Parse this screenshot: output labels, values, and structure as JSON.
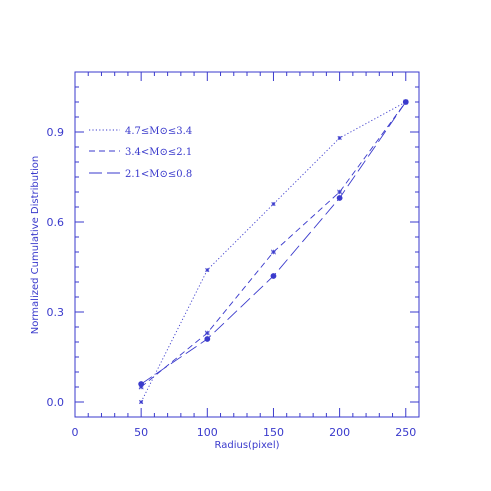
{
  "chart_data": {
    "type": "line",
    "title": "",
    "xlabel": "Radius(pixel)",
    "ylabel": "Normalized Cumulative Distribution",
    "xlim": [
      0,
      260
    ],
    "ylim": [
      -0.05,
      1.1
    ],
    "xticks": [
      0,
      50,
      100,
      150,
      200,
      250
    ],
    "xtick_labels": [
      "0",
      "50",
      "100",
      "150",
      "200",
      "250"
    ],
    "yticks": [
      0.0,
      0.3,
      0.6,
      0.9
    ],
    "ytick_labels": [
      "0.0",
      "0.3",
      "0.6",
      "0.9"
    ],
    "grid": false,
    "legend_position": "top-left",
    "color": "#3a3acc",
    "series": [
      {
        "name": "4.7≤M⊙≤3.4",
        "dash": "dotted",
        "marker": "star",
        "x": [
          50,
          100,
          150,
          200,
          250
        ],
        "y": [
          0.0,
          0.44,
          0.66,
          0.88,
          1.0
        ]
      },
      {
        "name": "3.4<M⊙≤2.1",
        "dash": "dashed",
        "marker": "asterisk",
        "x": [
          50,
          100,
          150,
          200,
          250
        ],
        "y": [
          0.05,
          0.23,
          0.5,
          0.7,
          1.0
        ]
      },
      {
        "name": "2.1<M⊙≤0.8",
        "dash": "long-dashed",
        "marker": "dot",
        "x": [
          50,
          100,
          150,
          200,
          250
        ],
        "y": [
          0.06,
          0.21,
          0.42,
          0.68,
          1.0
        ]
      }
    ]
  }
}
